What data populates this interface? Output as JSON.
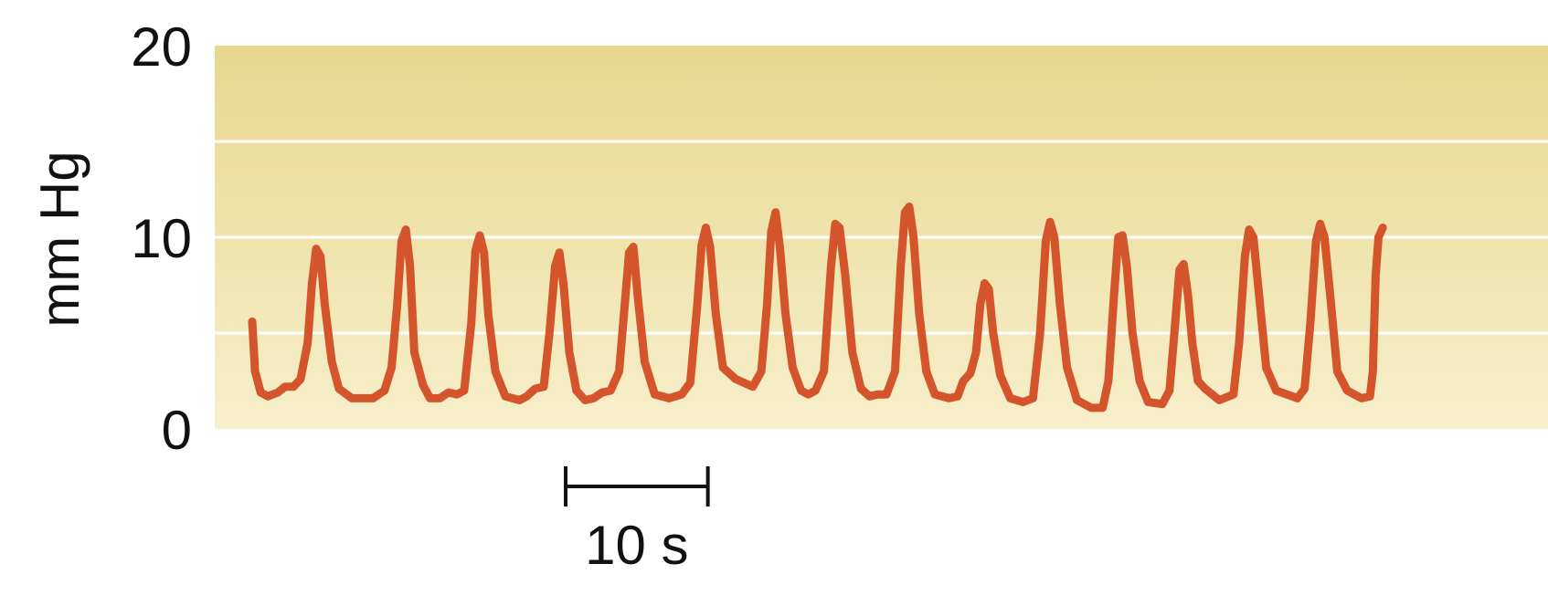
{
  "chart_data": {
    "type": "line",
    "ylabel": "mm Hg",
    "ylim": [
      0,
      20
    ],
    "yticks": [
      0,
      10,
      20
    ],
    "grid_lines_y": [
      5,
      10,
      15
    ],
    "grid": true,
    "scale_bar": {
      "label": "10 s",
      "seconds": 10
    },
    "xlim": [
      0,
      80
    ],
    "x_unit": "s",
    "colors": {
      "line": "#d4552b",
      "band_top": "#e8d78c",
      "band_bottom": "#f7efcc",
      "grid": "#ffffff",
      "text": "#111111"
    },
    "series": [
      {
        "points": [
          [
            0.0,
            5.6
          ],
          [
            0.2,
            3.0
          ],
          [
            0.6,
            1.9
          ],
          [
            1.1,
            1.7
          ],
          [
            1.8,
            1.9
          ],
          [
            2.3,
            2.2
          ],
          [
            2.9,
            2.2
          ],
          [
            3.4,
            2.6
          ],
          [
            3.9,
            4.5
          ],
          [
            4.2,
            7.6
          ],
          [
            4.5,
            9.4
          ],
          [
            4.8,
            9.0
          ],
          [
            5.1,
            6.5
          ],
          [
            5.6,
            3.5
          ],
          [
            6.1,
            2.1
          ],
          [
            7.0,
            1.6
          ],
          [
            8.5,
            1.6
          ],
          [
            9.3,
            2.0
          ],
          [
            9.8,
            3.2
          ],
          [
            10.2,
            6.5
          ],
          [
            10.5,
            9.8
          ],
          [
            10.8,
            10.4
          ],
          [
            11.1,
            8.5
          ],
          [
            11.4,
            4.0
          ],
          [
            12.0,
            2.3
          ],
          [
            12.5,
            1.6
          ],
          [
            13.2,
            1.6
          ],
          [
            13.8,
            1.9
          ],
          [
            14.4,
            1.8
          ],
          [
            14.9,
            2.0
          ],
          [
            15.4,
            5.5
          ],
          [
            15.7,
            9.3
          ],
          [
            16.0,
            10.1
          ],
          [
            16.3,
            9.2
          ],
          [
            16.6,
            6.0
          ],
          [
            17.1,
            3.0
          ],
          [
            17.8,
            1.7
          ],
          [
            18.8,
            1.5
          ],
          [
            19.3,
            1.7
          ],
          [
            19.9,
            2.1
          ],
          [
            20.5,
            2.2
          ],
          [
            20.9,
            5.0
          ],
          [
            21.3,
            8.5
          ],
          [
            21.6,
            9.2
          ],
          [
            21.9,
            7.5
          ],
          [
            22.3,
            4.0
          ],
          [
            22.8,
            2.0
          ],
          [
            23.4,
            1.5
          ],
          [
            24.0,
            1.6
          ],
          [
            24.6,
            1.9
          ],
          [
            25.2,
            2.0
          ],
          [
            25.8,
            3.0
          ],
          [
            26.2,
            6.5
          ],
          [
            26.5,
            9.2
          ],
          [
            26.8,
            9.5
          ],
          [
            27.1,
            7.0
          ],
          [
            27.6,
            3.5
          ],
          [
            28.3,
            1.8
          ],
          [
            29.3,
            1.6
          ],
          [
            30.2,
            1.8
          ],
          [
            30.8,
            2.4
          ],
          [
            31.3,
            6.5
          ],
          [
            31.6,
            9.6
          ],
          [
            31.9,
            10.5
          ],
          [
            32.2,
            9.5
          ],
          [
            32.6,
            6.0
          ],
          [
            33.1,
            3.2
          ],
          [
            34.0,
            2.6
          ],
          [
            35.2,
            2.2
          ],
          [
            35.8,
            3.0
          ],
          [
            36.2,
            6.5
          ],
          [
            36.5,
            10.3
          ],
          [
            36.8,
            11.3
          ],
          [
            37.1,
            9.5
          ],
          [
            37.5,
            6.0
          ],
          [
            38.0,
            3.2
          ],
          [
            38.6,
            2.0
          ],
          [
            39.1,
            1.8
          ],
          [
            39.6,
            2.0
          ],
          [
            40.2,
            3.0
          ],
          [
            40.7,
            8.5
          ],
          [
            41.0,
            10.7
          ],
          [
            41.3,
            10.5
          ],
          [
            41.7,
            8.0
          ],
          [
            42.2,
            4.0
          ],
          [
            42.8,
            2.1
          ],
          [
            43.4,
            1.7
          ],
          [
            44.0,
            1.8
          ],
          [
            44.6,
            1.8
          ],
          [
            45.2,
            3.0
          ],
          [
            45.6,
            8.5
          ],
          [
            45.9,
            11.3
          ],
          [
            46.2,
            11.6
          ],
          [
            46.5,
            10.0
          ],
          [
            46.9,
            6.0
          ],
          [
            47.4,
            3.0
          ],
          [
            48.0,
            1.8
          ],
          [
            49.0,
            1.6
          ],
          [
            49.6,
            1.7
          ],
          [
            50.0,
            2.5
          ],
          [
            50.5,
            2.9
          ],
          [
            50.9,
            4.0
          ],
          [
            51.2,
            6.5
          ],
          [
            51.5,
            7.6
          ],
          [
            51.8,
            7.3
          ],
          [
            52.1,
            5.0
          ],
          [
            52.6,
            2.8
          ],
          [
            53.3,
            1.6
          ],
          [
            54.2,
            1.4
          ],
          [
            54.9,
            1.6
          ],
          [
            55.4,
            5.0
          ],
          [
            55.8,
            9.8
          ],
          [
            56.1,
            10.8
          ],
          [
            56.4,
            10.0
          ],
          [
            56.8,
            6.5
          ],
          [
            57.3,
            3.2
          ],
          [
            58.0,
            1.5
          ],
          [
            59.0,
            1.1
          ],
          [
            59.8,
            1.1
          ],
          [
            60.2,
            2.5
          ],
          [
            60.6,
            7.0
          ],
          [
            60.9,
            10.0
          ],
          [
            61.2,
            10.1
          ],
          [
            61.5,
            8.5
          ],
          [
            61.9,
            5.0
          ],
          [
            62.4,
            2.5
          ],
          [
            63.0,
            1.4
          ],
          [
            64.0,
            1.3
          ],
          [
            64.5,
            2.0
          ],
          [
            64.9,
            5.5
          ],
          [
            65.2,
            8.3
          ],
          [
            65.5,
            8.6
          ],
          [
            65.8,
            7.0
          ],
          [
            66.1,
            4.5
          ],
          [
            66.5,
            2.5
          ],
          [
            67.0,
            2.1
          ],
          [
            68.0,
            1.5
          ],
          [
            69.0,
            1.8
          ],
          [
            69.4,
            4.5
          ],
          [
            69.8,
            9.0
          ],
          [
            70.1,
            10.4
          ],
          [
            70.4,
            10.0
          ],
          [
            70.8,
            7.0
          ],
          [
            71.3,
            3.2
          ],
          [
            72.0,
            2.0
          ],
          [
            73.5,
            1.6
          ],
          [
            74.0,
            2.1
          ],
          [
            74.4,
            5.5
          ],
          [
            74.8,
            9.8
          ],
          [
            75.1,
            10.7
          ],
          [
            75.4,
            10.0
          ],
          [
            75.8,
            7.0
          ],
          [
            76.3,
            3.0
          ],
          [
            77.0,
            2.0
          ],
          [
            78.0,
            1.6
          ],
          [
            78.6,
            1.7
          ],
          [
            78.8,
            3.0
          ],
          [
            79.0,
            8.0
          ],
          [
            79.2,
            10.0
          ],
          [
            79.5,
            10.5
          ]
        ]
      }
    ]
  }
}
